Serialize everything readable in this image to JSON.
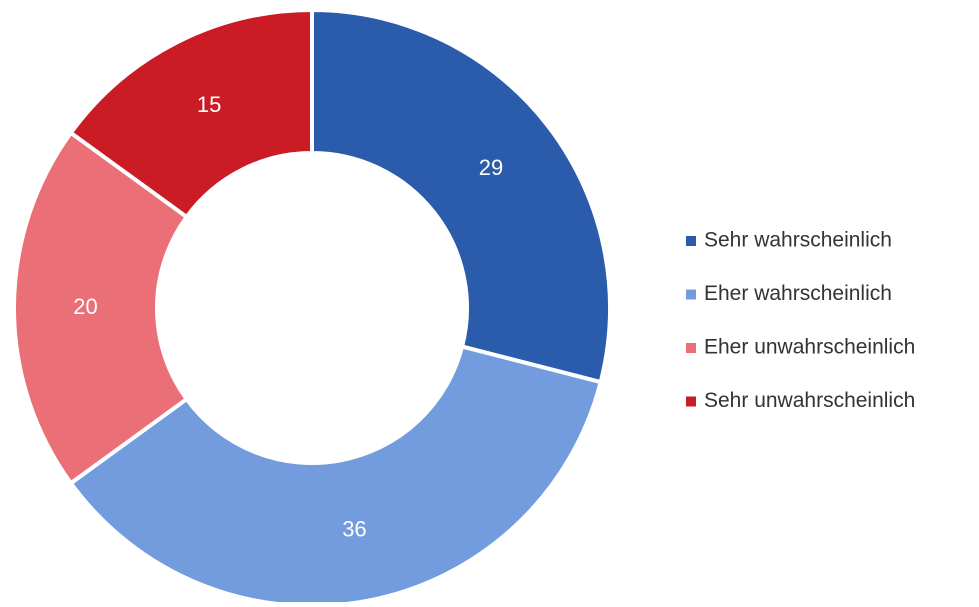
{
  "chart_data": {
    "type": "donut",
    "categories": [
      "Sehr wahrscheinlich",
      "Eher wahrscheinlich",
      "Eher unwahrscheinlich",
      "Sehr unwahrscheinlich"
    ],
    "values": [
      29,
      36,
      20,
      15
    ],
    "colors": [
      "#2b5cab",
      "#729cdd",
      "#eb6f77",
      "#cb1c26"
    ],
    "legend": "right"
  }
}
